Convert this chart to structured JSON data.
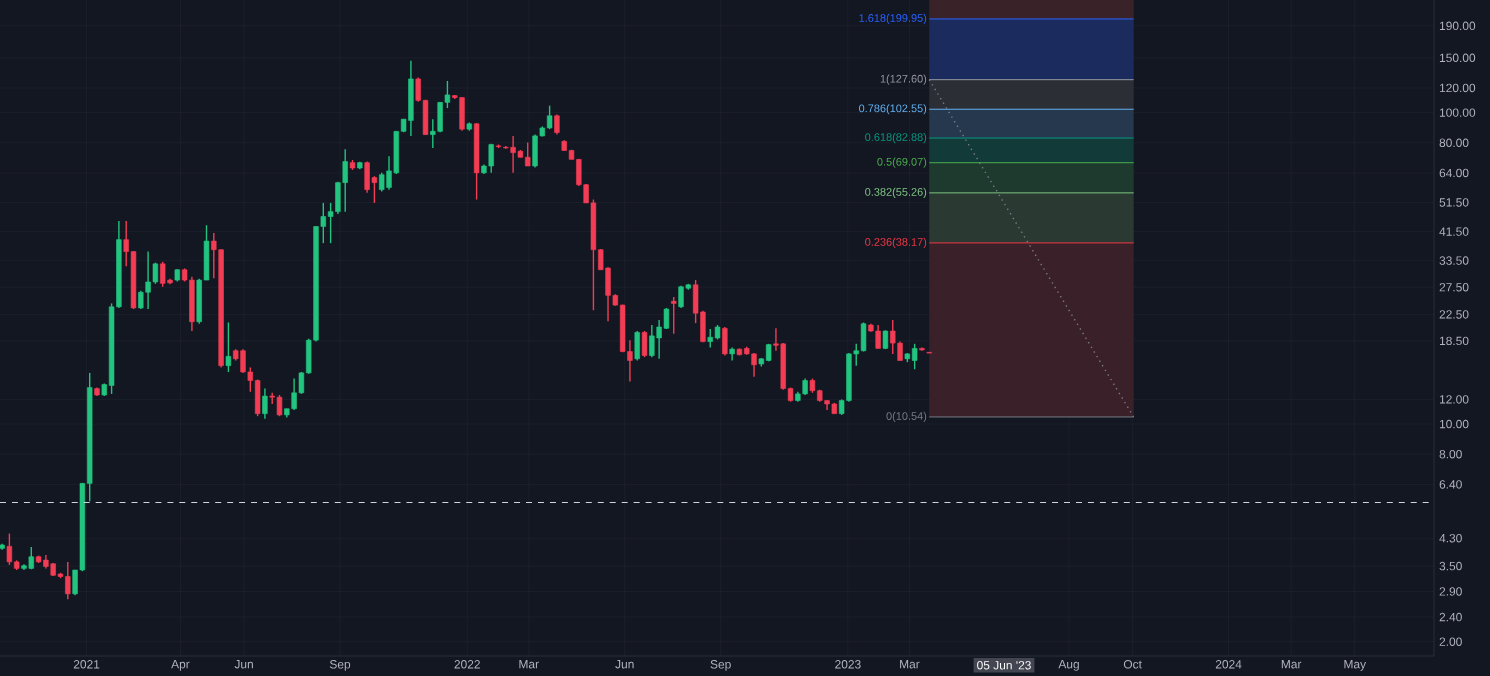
{
  "chart_data": {
    "type": "candlestick",
    "log": "y",
    "grid": true,
    "xlim": [
      "2020-10-10",
      "2024-07-16"
    ],
    "ylim": [
      1.8,
      230
    ],
    "xticks": [
      {
        "value": "2021-01-01",
        "label": "2021"
      },
      {
        "value": "2021-04-01",
        "label": "Apr"
      },
      {
        "value": "2021-06-01",
        "label": "Jun"
      },
      {
        "value": "2021-09-01",
        "label": "Sep"
      },
      {
        "value": "2022-01-01",
        "label": "2022"
      },
      {
        "value": "2022-03-01",
        "label": "Mar"
      },
      {
        "value": "2022-06-01",
        "label": "Jun"
      },
      {
        "value": "2022-09-01",
        "label": "Sep"
      },
      {
        "value": "2023-01-01",
        "label": "2023"
      },
      {
        "value": "2023-03-01",
        "label": "Mar"
      },
      {
        "value": "2023-08-01",
        "label": "Aug"
      },
      {
        "value": "2023-10-01",
        "label": "Oct"
      },
      {
        "value": "2024-01-01",
        "label": "2024"
      },
      {
        "value": "2024-03-01",
        "label": "Mar"
      },
      {
        "value": "2024-05-01",
        "label": "May"
      }
    ],
    "yticks": [
      {
        "value": 2.0,
        "label": "2.00"
      },
      {
        "value": 2.4,
        "label": "2.40"
      },
      {
        "value": 2.9,
        "label": "2.90"
      },
      {
        "value": 3.5,
        "label": "3.50"
      },
      {
        "value": 4.3,
        "label": "4.30"
      },
      {
        "value": 6.4,
        "label": "6.40"
      },
      {
        "value": 8,
        "label": "8.00"
      },
      {
        "value": 10,
        "label": "10.00"
      },
      {
        "value": 12,
        "label": "12.00"
      },
      {
        "value": 18.5,
        "label": "18.50"
      },
      {
        "value": 22.5,
        "label": "22.50"
      },
      {
        "value": 27.5,
        "label": "27.50"
      },
      {
        "value": 33.5,
        "label": "33.50"
      },
      {
        "value": 41.5,
        "label": "41.50"
      },
      {
        "value": 51.5,
        "label": "51.50"
      },
      {
        "value": 64,
        "label": "64.00"
      },
      {
        "value": 80,
        "label": "80.00"
      },
      {
        "value": 100,
        "label": "100.00"
      },
      {
        "value": 120,
        "label": "120.00"
      },
      {
        "value": 150,
        "label": "150.00"
      },
      {
        "value": 190,
        "label": "190.00"
      }
    ],
    "series": [
      {
        "x": [
          "2020-10-12",
          "2020-10-19",
          "2020-10-26",
          "2020-11-02",
          "2020-11-09",
          "2020-11-16",
          "2020-11-23",
          "2020-11-30",
          "2020-12-07",
          "2020-12-14",
          "2020-12-21",
          "2020-12-28",
          "2021-01-04",
          "2021-01-11",
          "2021-01-18",
          "2021-01-25",
          "2021-02-01",
          "2021-02-08",
          "2021-02-15",
          "2021-02-22",
          "2021-03-01",
          "2021-03-08",
          "2021-03-15",
          "2021-03-22",
          "2021-03-29",
          "2021-04-05",
          "2021-04-12",
          "2021-04-19",
          "2021-04-26",
          "2021-05-03",
          "2021-05-10",
          "2021-05-17",
          "2021-05-24",
          "2021-05-31",
          "2021-06-07",
          "2021-06-14",
          "2021-06-21",
          "2021-06-28",
          "2021-07-05",
          "2021-07-12",
          "2021-07-19",
          "2021-07-26",
          "2021-08-02",
          "2021-08-09",
          "2021-08-16",
          "2021-08-23",
          "2021-08-30",
          "2021-09-06",
          "2021-09-13",
          "2021-09-20",
          "2021-09-27",
          "2021-10-04",
          "2021-10-11",
          "2021-10-18",
          "2021-10-25",
          "2021-11-01",
          "2021-11-08",
          "2021-11-15",
          "2021-11-22",
          "2021-11-29",
          "2021-12-06",
          "2021-12-13",
          "2021-12-20",
          "2021-12-27",
          "2022-01-03",
          "2022-01-10",
          "2022-01-17",
          "2022-01-24",
          "2022-01-31",
          "2022-02-07",
          "2022-02-14",
          "2022-02-21",
          "2022-02-28",
          "2022-03-07",
          "2022-03-14",
          "2022-03-21",
          "2022-03-28",
          "2022-04-04",
          "2022-04-11",
          "2022-04-18",
          "2022-04-25",
          "2022-05-02",
          "2022-05-09",
          "2022-05-16",
          "2022-05-23",
          "2022-05-30",
          "2022-06-06",
          "2022-06-13",
          "2022-06-20",
          "2022-06-27",
          "2022-07-04",
          "2022-07-11",
          "2022-07-18",
          "2022-07-25",
          "2022-08-01",
          "2022-08-08",
          "2022-08-15",
          "2022-08-22",
          "2022-08-29",
          "2022-09-05",
          "2022-09-12",
          "2022-09-19",
          "2022-09-26",
          "2022-10-03",
          "2022-10-10",
          "2022-10-17",
          "2022-10-24",
          "2022-10-31",
          "2022-11-07",
          "2022-11-14",
          "2022-11-21",
          "2022-11-28",
          "2022-12-05",
          "2022-12-12",
          "2022-12-19",
          "2022-12-26",
          "2023-01-02",
          "2023-01-09",
          "2023-01-16",
          "2023-01-23",
          "2023-01-30",
          "2023-02-06",
          "2023-02-13",
          "2023-02-20",
          "2023-02-27",
          "2023-03-06",
          "2023-03-13",
          "2023-03-20"
        ],
        "ohlc": [
          [
            3.99,
            4.13,
            3.95,
            4.09
          ],
          [
            4.05,
            4.45,
            3.53,
            3.61
          ],
          [
            3.61,
            3.65,
            3.4,
            3.44
          ],
          [
            3.44,
            3.55,
            3.4,
            3.51
          ],
          [
            3.44,
            4.03,
            3.42,
            3.75
          ],
          [
            3.75,
            3.78,
            3.58,
            3.61
          ],
          [
            3.66,
            3.8,
            3.44,
            3.49
          ],
          [
            3.56,
            3.58,
            3.25,
            3.27
          ],
          [
            3.3,
            3.33,
            3.2,
            3.24
          ],
          [
            3.24,
            3.61,
            2.74,
            2.85
          ],
          [
            2.85,
            3.4,
            2.82,
            3.4
          ],
          [
            3.4,
            6.47,
            3.37,
            6.45
          ],
          [
            6.45,
            14.6,
            5.65,
            13.1
          ],
          [
            13.0,
            13.1,
            12.3,
            12.4
          ],
          [
            12.4,
            13.5,
            12.3,
            13.4
          ],
          [
            13.3,
            24.4,
            12.5,
            23.8
          ],
          [
            23.8,
            44.9,
            23.6,
            39.1
          ],
          [
            39.1,
            44.9,
            32.1,
            35.8
          ],
          [
            35.8,
            35.9,
            23.4,
            23.6
          ],
          [
            23.6,
            26.8,
            23.4,
            26.5
          ],
          [
            26.5,
            35.8,
            23.4,
            28.6
          ],
          [
            28.6,
            33.0,
            28.2,
            32.7
          ],
          [
            32.7,
            33.2,
            27.6,
            28.3
          ],
          [
            29.0,
            29.3,
            28.1,
            28.4
          ],
          [
            29.0,
            31.5,
            28.7,
            31.3
          ],
          [
            31.3,
            31.6,
            28.7,
            29.0
          ],
          [
            29.0,
            29.7,
            19.9,
            21.3
          ],
          [
            21.3,
            29.3,
            21.0,
            29.0
          ],
          [
            29.0,
            43.5,
            29.0,
            38.7
          ],
          [
            38.7,
            41.1,
            29.4,
            36.3
          ],
          [
            36.3,
            36.4,
            15.2,
            15.4
          ],
          [
            15.4,
            21.2,
            14.7,
            16.5
          ],
          [
            17.2,
            17.4,
            16.0,
            16.2
          ],
          [
            17.2,
            17.4,
            14.6,
            14.7
          ],
          [
            14.7,
            15.2,
            12.7,
            13.8
          ],
          [
            13.8,
            13.9,
            10.6,
            10.8
          ],
          [
            10.8,
            13.0,
            10.4,
            12.3
          ],
          [
            12.3,
            12.6,
            11.6,
            12.2
          ],
          [
            12.2,
            12.4,
            10.6,
            10.7
          ],
          [
            10.7,
            11.2,
            10.5,
            11.2
          ],
          [
            11.2,
            14.0,
            11.1,
            12.6
          ],
          [
            12.6,
            14.7,
            12.5,
            14.6
          ],
          [
            14.6,
            18.8,
            14.5,
            18.6
          ],
          [
            18.6,
            43.1,
            18.4,
            43.1
          ],
          [
            43.1,
            51.3,
            38.1,
            46.4
          ],
          [
            46.4,
            51.3,
            38.1,
            48.1
          ],
          [
            48.1,
            60.0,
            47.3,
            59.6
          ],
          [
            59.6,
            76.3,
            48.1,
            69.7
          ],
          [
            69.1,
            70.5,
            65.5,
            66.4
          ],
          [
            66.4,
            69.5,
            65.8,
            69.1
          ],
          [
            69.1,
            69.7,
            55.3,
            56.6
          ],
          [
            61.9,
            62.5,
            51.3,
            59.6
          ],
          [
            56.6,
            64.1,
            55.8,
            63.2
          ],
          [
            57.5,
            72.5,
            56.5,
            65.0
          ],
          [
            64.1,
            87.1,
            63.5,
            87.1
          ],
          [
            87.1,
            95.3,
            86.5,
            95.3
          ],
          [
            94.4,
            146.8,
            84.2,
            128.3
          ],
          [
            128.3,
            129.6,
            108.4,
            109.5
          ],
          [
            109.5,
            110.0,
            85.0,
            85.0
          ],
          [
            85.0,
            95.3,
            77.0,
            87.1
          ],
          [
            87.1,
            107.9,
            86.5,
            107.9
          ],
          [
            107.9,
            126.4,
            103.4,
            114.0
          ],
          [
            113.4,
            114.0,
            110.6,
            111.8
          ],
          [
            111.8,
            112.0,
            87.5,
            88.5
          ],
          [
            88.5,
            93.0,
            87.5,
            92.1
          ],
          [
            92.1,
            92.5,
            52.6,
            64.1
          ],
          [
            64.1,
            68.1,
            63.5,
            67.4
          ],
          [
            67.4,
            79.4,
            64.1,
            79.0
          ],
          [
            78.2,
            79.0,
            77.0,
            77.8
          ],
          [
            77.4,
            78.2,
            76.6,
            77.0
          ],
          [
            77.4,
            84.2,
            64.1,
            74.4
          ],
          [
            75.2,
            75.9,
            71.8,
            71.9
          ],
          [
            71.9,
            80.2,
            67.4,
            67.4
          ],
          [
            67.4,
            85.0,
            66.7,
            84.2
          ],
          [
            84.2,
            90.3,
            83.8,
            89.3
          ],
          [
            89.3,
            105.3,
            88.5,
            97.7
          ],
          [
            97.7,
            98.6,
            85.0,
            86.3
          ],
          [
            80.9,
            81.5,
            75.4,
            75.6
          ],
          [
            75.6,
            76.0,
            70.8,
            70.8
          ],
          [
            70.8,
            71.0,
            58.1,
            58.7
          ],
          [
            58.7,
            59.0,
            51.3,
            51.3
          ],
          [
            51.3,
            52.6,
            23.2,
            36.3
          ],
          [
            36.3,
            36.5,
            31.3,
            31.3
          ],
          [
            31.7,
            31.9,
            21.4,
            25.9
          ],
          [
            25.9,
            26.1,
            24.0,
            24.1
          ],
          [
            24.1,
            24.2,
            17.0,
            17.1
          ],
          [
            17.1,
            18.6,
            13.7,
            16.0
          ],
          [
            16.2,
            19.9,
            16.0,
            19.7
          ],
          [
            19.7,
            19.9,
            16.4,
            16.6
          ],
          [
            16.6,
            20.8,
            16.4,
            19.2
          ],
          [
            18.9,
            21.6,
            16.2,
            20.5
          ],
          [
            20.3,
            23.6,
            20.2,
            23.4
          ],
          [
            24.8,
            25.6,
            19.5,
            24.4
          ],
          [
            23.8,
            27.8,
            23.6,
            27.6
          ],
          [
            27.3,
            28.2,
            27.0,
            28.0
          ],
          [
            28.0,
            29.0,
            21.1,
            22.7
          ],
          [
            22.9,
            23.1,
            18.3,
            18.4
          ],
          [
            18.4,
            20.2,
            17.6,
            19.0
          ],
          [
            18.9,
            20.8,
            18.7,
            20.5
          ],
          [
            20.3,
            20.5,
            16.6,
            16.8
          ],
          [
            16.8,
            17.6,
            16.0,
            17.4
          ],
          [
            17.4,
            17.5,
            16.6,
            16.7
          ],
          [
            17.5,
            17.7,
            16.7,
            16.8
          ],
          [
            16.8,
            16.9,
            14.2,
            15.5
          ],
          [
            15.6,
            16.3,
            15.3,
            16.2
          ],
          [
            16.0,
            18.1,
            15.9,
            18.0
          ],
          [
            18.1,
            20.3,
            17.2,
            17.9
          ],
          [
            18.1,
            18.2,
            12.9,
            13.0
          ],
          [
            13.0,
            13.1,
            11.8,
            11.9
          ],
          [
            11.9,
            12.7,
            11.8,
            12.5
          ],
          [
            12.5,
            14.0,
            12.4,
            13.8
          ],
          [
            13.8,
            14.0,
            12.6,
            12.8
          ],
          [
            12.8,
            12.9,
            11.8,
            11.9
          ],
          [
            11.9,
            11.9,
            11.1,
            11.6
          ],
          [
            11.6,
            11.7,
            10.8,
            10.8
          ],
          [
            10.8,
            12.0,
            10.7,
            11.9
          ],
          [
            11.9,
            16.9,
            11.8,
            16.8
          ],
          [
            16.8,
            18.1,
            15.4,
            17.2
          ],
          [
            17.2,
            21.2,
            17.1,
            21.0
          ],
          [
            20.8,
            21.0,
            19.8,
            19.9
          ],
          [
            19.9,
            20.8,
            17.5,
            17.5
          ],
          [
            17.5,
            20.0,
            17.4,
            19.9
          ],
          [
            19.9,
            21.6,
            16.8,
            18.2
          ],
          [
            18.2,
            18.4,
            16.0,
            16.0
          ],
          [
            16.2,
            16.9,
            15.8,
            16.8
          ],
          [
            16.0,
            18.1,
            15.0,
            17.5
          ],
          [
            17.5,
            17.6,
            17.2,
            17.3
          ],
          [
            17.0,
            17.0,
            16.9,
            16.9
          ]
        ],
        "colors": [
          "#22c47f",
          "#f23d55",
          "#f23d55",
          "#22c47f",
          "#22c47f",
          "#f23d55",
          "#f23d55",
          "#f23d55",
          "#f23d55",
          "#f23d55",
          "#22c47f",
          "#22c47f",
          "#22c47f",
          "#f23d55",
          "#22c47f",
          "#22c47f",
          "#22c47f",
          "#f23d55",
          "#f23d55",
          "#22c47f",
          "#22c47f",
          "#22c47f",
          "#f23d55",
          "#f23d55",
          "#22c47f",
          "#f23d55",
          "#f23d55",
          "#22c47f",
          "#22c47f",
          "#f23d55",
          "#f23d55",
          "#22c47f",
          "#f23d55",
          "#f23d55",
          "#f23d55",
          "#f23d55",
          "#22c47f",
          "#f23d55",
          "#f23d55",
          "#22c47f",
          "#22c47f",
          "#22c47f",
          "#22c47f",
          "#22c47f",
          "#22c47f",
          "#22c47f",
          "#22c47f",
          "#22c47f",
          "#f23d55",
          "#22c47f",
          "#f23d55",
          "#f23d55",
          "#22c47f",
          "#22c47f",
          "#22c47f",
          "#22c47f",
          "#22c47f",
          "#f23d55",
          "#f23d55",
          "#22c47f",
          "#22c47f",
          "#22c47f",
          "#f23d55",
          "#f23d55",
          "#22c47f",
          "#f23d55",
          "#22c47f",
          "#22c47f",
          "#f23d55",
          "#f23d55",
          "#f23d55",
          "#f23d55",
          "#f23d55",
          "#22c47f",
          "#22c47f",
          "#22c47f",
          "#f23d55",
          "#f23d55",
          "#f23d55",
          "#f23d55",
          "#f23d55",
          "#f23d55",
          "#f23d55",
          "#f23d55",
          "#f23d55",
          "#f23d55",
          "#f23d55",
          "#22c47f",
          "#f23d55",
          "#22c47f",
          "#22c47f",
          "#22c47f",
          "#f23d55",
          "#22c47f",
          "#22c47f",
          "#f23d55",
          "#f23d55",
          "#22c47f",
          "#22c47f",
          "#f23d55",
          "#22c47f",
          "#f23d55",
          "#f23d55",
          "#f23d55",
          "#22c47f",
          "#22c47f",
          "#f23d55",
          "#f23d55",
          "#f23d55",
          "#22c47f",
          "#22c47f",
          "#f23d55",
          "#f23d55",
          "#f23d55",
          "#f23d55",
          "#22c47f",
          "#22c47f",
          "#22c47f",
          "#22c47f",
          "#f23d55",
          "#f23d55",
          "#22c47f",
          "#f23d55",
          "#f23d55",
          "#22c47f",
          "#22c47f",
          "#f23d55",
          "#f23d55"
        ]
      },
      {
        "type": "line",
        "x": [
          "2023-03-20",
          "2023-10-02"
        ],
        "values": [
          127.6,
          10.54
        ],
        "color": "#787b86",
        "line_style": "dotted"
      }
    ],
    "bands": [
      {
        "axis": "y",
        "from": 10.54,
        "to": 38.17,
        "color": "#3a2029"
      },
      {
        "axis": "y",
        "from": 38.17,
        "to": 55.26,
        "color": "#2a3a33"
      },
      {
        "axis": "y",
        "from": 55.26,
        "to": 69.07,
        "color": "#1e3a2e"
      },
      {
        "axis": "y",
        "from": 69.07,
        "to": 82.88,
        "color": "#123a39"
      },
      {
        "axis": "y",
        "from": 82.88,
        "to": 102.55,
        "color": "#25384e"
      },
      {
        "axis": "y",
        "from": 102.55,
        "to": 127.6,
        "color": "#2c2e36"
      },
      {
        "axis": "y",
        "from": 127.6,
        "to": 199.95,
        "color": "#1c2b5e"
      },
      {
        "axis": "y",
        "from": 199.95,
        "to": 230,
        "color": "#3a2229"
      }
    ],
    "ref_lines": [
      {
        "axis": "y",
        "value": 10.54,
        "label": "0(10.54)",
        "color": "#787b86"
      },
      {
        "axis": "y",
        "value": 38.17,
        "label": "0.236(38.17)",
        "color": "#f23645"
      },
      {
        "axis": "y",
        "value": 55.26,
        "label": "0.382(55.26)",
        "color": "#81c784"
      },
      {
        "axis": "y",
        "value": 69.07,
        "label": "0.5(69.07)",
        "color": "#4caf50"
      },
      {
        "axis": "y",
        "value": 82.88,
        "label": "0.618(82.88)",
        "color": "#089981"
      },
      {
        "axis": "y",
        "value": 102.55,
        "label": "0.786(102.55)",
        "color": "#64b5f6"
      },
      {
        "axis": "y",
        "value": 127.6,
        "label": "1(127.60)",
        "color": "#9598a1"
      },
      {
        "axis": "y",
        "value": 199.95,
        "label": "1.618(199.95)",
        "color": "#2962ff"
      },
      {
        "axis": "y",
        "value": 5.6,
        "color": "#d1d4dc",
        "line_style": "dashed"
      }
    ],
    "annotations": [
      "05 Jun '23"
    ]
  }
}
